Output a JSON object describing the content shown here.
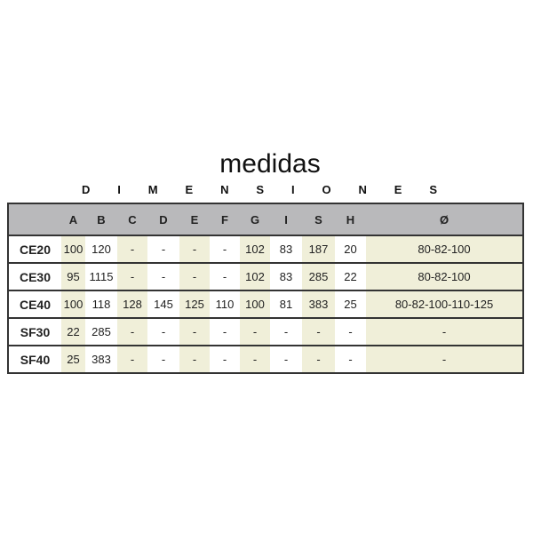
{
  "title": "medidas",
  "subtitle_letters": [
    "D",
    "I",
    "M",
    "E",
    "N",
    "S",
    "I",
    "O",
    "N",
    "E",
    "S"
  ],
  "colors": {
    "header_bg": "#b9b9bb",
    "shaded_column": "#f0efd9"
  },
  "table": {
    "headers": [
      "",
      "A",
      "B",
      "C",
      "D",
      "E",
      "F",
      "G",
      "I",
      "S",
      "H",
      "Ø"
    ],
    "rows": [
      [
        "CE20",
        "100",
        "120",
        "-",
        "-",
        "-",
        "-",
        "102",
        "83",
        "187",
        "20",
        "80-82-100"
      ],
      [
        "CE30",
        "95",
        "1115",
        "-",
        "-",
        "-",
        "-",
        "102",
        "83",
        "285",
        "22",
        "80-82-100"
      ],
      [
        "CE40",
        "100",
        "118",
        "128",
        "145",
        "125",
        "110",
        "100",
        "81",
        "383",
        "25",
        "80-82-100-110-125"
      ],
      [
        "SF30",
        "22",
        "285",
        "-",
        "-",
        "-",
        "-",
        "-",
        "-",
        "-",
        "-",
        "-"
      ],
      [
        "SF40",
        "25",
        "383",
        "-",
        "-",
        "-",
        "-",
        "-",
        "-",
        "-",
        "-",
        "-"
      ]
    ]
  }
}
